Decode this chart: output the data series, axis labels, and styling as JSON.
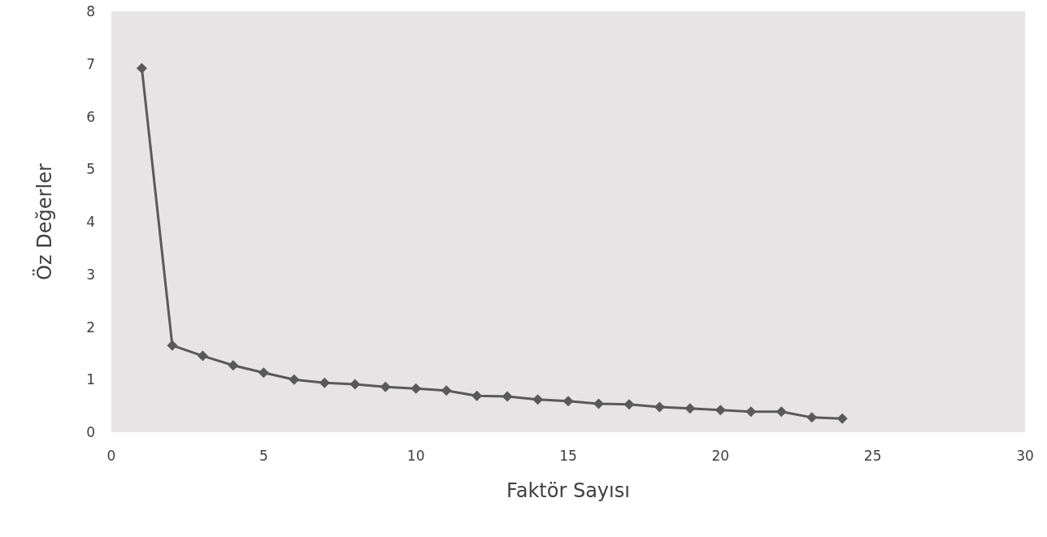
{
  "chart_data": {
    "type": "line",
    "xlabel": "Faktör Sayısı",
    "ylabel": "Öz Değerler",
    "x": [
      1,
      2,
      3,
      4,
      5,
      6,
      7,
      8,
      9,
      10,
      11,
      12,
      13,
      14,
      15,
      16,
      17,
      18,
      19,
      20,
      21,
      22,
      23,
      24
    ],
    "series": [
      {
        "color": "#595959",
        "values": [
          6.92,
          1.65,
          1.45,
          1.27,
          1.13,
          1.0,
          0.94,
          0.91,
          0.86,
          0.83,
          0.79,
          0.69,
          0.68,
          0.62,
          0.59,
          0.54,
          0.53,
          0.48,
          0.45,
          0.42,
          0.39,
          0.39,
          0.28,
          0.26
        ]
      }
    ],
    "xlim": [
      0,
      30
    ],
    "xticks": [
      0,
      5,
      10,
      15,
      20,
      25,
      30
    ],
    "ylim": [
      0,
      8
    ],
    "yticks": [
      0,
      1,
      2,
      3,
      4,
      5,
      6,
      7,
      8
    ],
    "grid": false,
    "marker": "diamond",
    "line_style": "solid"
  }
}
